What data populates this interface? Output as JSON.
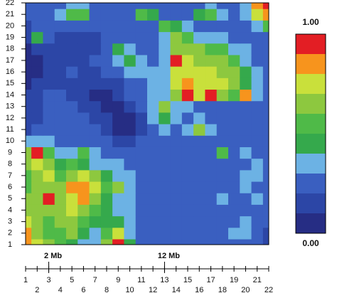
{
  "chart_data": {
    "type": "contour",
    "x": [
      1,
      2,
      3,
      4,
      5,
      6,
      7,
      8,
      9,
      10,
      11,
      12,
      13,
      14,
      15,
      16,
      17,
      18,
      19,
      20,
      21,
      22
    ],
    "y": [
      1,
      2,
      3,
      4,
      5,
      6,
      7,
      8,
      9,
      10,
      11,
      12,
      13,
      14,
      15,
      16,
      17,
      18,
      19,
      20,
      21,
      22
    ],
    "z": [
      [
        0.85,
        0.7,
        0.6,
        0.55,
        0.5,
        0.45,
        0.4,
        0.6,
        0.9,
        0.5,
        0.3,
        0.25,
        0.25,
        0.25,
        0.25,
        0.25,
        0.3,
        0.25,
        0.25,
        0.3,
        0.25,
        0.2
      ],
      [
        0.8,
        0.65,
        0.55,
        0.55,
        0.6,
        0.5,
        0.45,
        0.55,
        0.7,
        0.45,
        0.3,
        0.25,
        0.25,
        0.25,
        0.25,
        0.3,
        0.25,
        0.3,
        0.35,
        0.45,
        0.3,
        0.2
      ],
      [
        0.7,
        0.6,
        0.55,
        0.6,
        0.65,
        0.55,
        0.5,
        0.5,
        0.5,
        0.4,
        0.3,
        0.25,
        0.3,
        0.3,
        0.25,
        0.25,
        0.3,
        0.25,
        0.3,
        0.35,
        0.3,
        0.25
      ],
      [
        0.65,
        0.6,
        0.6,
        0.65,
        0.7,
        0.65,
        0.55,
        0.5,
        0.45,
        0.35,
        0.3,
        0.3,
        0.25,
        0.25,
        0.3,
        0.25,
        0.25,
        0.3,
        0.3,
        0.3,
        0.3,
        0.25
      ],
      [
        0.6,
        0.65,
        0.9,
        0.65,
        0.75,
        0.85,
        0.65,
        0.5,
        0.45,
        0.35,
        0.3,
        0.25,
        0.25,
        0.3,
        0.3,
        0.25,
        0.3,
        0.35,
        0.3,
        0.3,
        0.35,
        0.3
      ],
      [
        0.55,
        0.6,
        0.65,
        0.6,
        0.85,
        0.8,
        0.7,
        0.55,
        0.6,
        0.4,
        0.3,
        0.25,
        0.3,
        0.3,
        0.25,
        0.3,
        0.3,
        0.3,
        0.3,
        0.35,
        0.3,
        0.25
      ],
      [
        0.55,
        0.65,
        0.7,
        0.55,
        0.65,
        0.7,
        0.6,
        0.5,
        0.45,
        0.35,
        0.3,
        0.25,
        0.25,
        0.3,
        0.3,
        0.25,
        0.25,
        0.3,
        0.3,
        0.35,
        0.45,
        0.3
      ],
      [
        0.6,
        0.75,
        0.6,
        0.5,
        0.55,
        0.5,
        0.45,
        0.4,
        0.35,
        0.3,
        0.3,
        0.25,
        0.25,
        0.3,
        0.25,
        0.25,
        0.3,
        0.3,
        0.3,
        0.3,
        0.35,
        0.3
      ],
      [
        0.6,
        0.9,
        0.55,
        0.4,
        0.35,
        0.55,
        0.35,
        0.3,
        0.3,
        0.3,
        0.3,
        0.3,
        0.25,
        0.3,
        0.3,
        0.3,
        0.3,
        0.55,
        0.3,
        0.45,
        0.3,
        0.25
      ],
      [
        0.35,
        0.4,
        0.35,
        0.3,
        0.3,
        0.3,
        0.3,
        0.25,
        0.2,
        0.2,
        0.25,
        0.3,
        0.3,
        0.3,
        0.3,
        0.3,
        0.3,
        0.3,
        0.3,
        0.3,
        0.3,
        0.3
      ],
      [
        0.2,
        0.25,
        0.3,
        0.3,
        0.3,
        0.3,
        0.25,
        0.2,
        0.15,
        0.15,
        0.2,
        0.3,
        0.35,
        0.3,
        0.45,
        0.6,
        0.45,
        0.3,
        0.3,
        0.3,
        0.25,
        0.3
      ],
      [
        0.2,
        0.2,
        0.25,
        0.3,
        0.3,
        0.25,
        0.2,
        0.2,
        0.15,
        0.15,
        0.2,
        0.35,
        0.5,
        0.35,
        0.3,
        0.4,
        0.3,
        0.3,
        0.3,
        0.25,
        0.25,
        0.3
      ],
      [
        0.2,
        0.2,
        0.25,
        0.25,
        0.25,
        0.2,
        0.2,
        0.15,
        0.15,
        0.2,
        0.3,
        0.45,
        0.6,
        0.45,
        0.35,
        0.3,
        0.3,
        0.3,
        0.3,
        0.3,
        0.3,
        0.3
      ],
      [
        0.2,
        0.2,
        0.25,
        0.25,
        0.2,
        0.2,
        0.15,
        0.15,
        0.2,
        0.25,
        0.3,
        0.4,
        0.45,
        0.6,
        0.9,
        0.7,
        0.9,
        0.65,
        0.55,
        0.8,
        0.4,
        0.3
      ],
      [
        0.15,
        0.2,
        0.2,
        0.2,
        0.2,
        0.2,
        0.2,
        0.2,
        0.2,
        0.25,
        0.3,
        0.35,
        0.4,
        0.75,
        0.8,
        0.75,
        0.75,
        0.7,
        0.6,
        0.5,
        0.35,
        0.3
      ],
      [
        0.15,
        0.15,
        0.2,
        0.2,
        0.25,
        0.2,
        0.2,
        0.25,
        0.3,
        0.4,
        0.45,
        0.35,
        0.35,
        0.7,
        0.75,
        0.75,
        0.7,
        0.65,
        0.6,
        0.5,
        0.35,
        0.3
      ],
      [
        0.15,
        0.15,
        0.2,
        0.2,
        0.2,
        0.2,
        0.25,
        0.3,
        0.35,
        0.5,
        0.4,
        0.3,
        0.35,
        0.9,
        0.7,
        0.65,
        0.6,
        0.6,
        0.55,
        0.45,
        0.3,
        0.25
      ],
      [
        0.15,
        0.2,
        0.2,
        0.2,
        0.2,
        0.2,
        0.2,
        0.3,
        0.5,
        0.35,
        0.3,
        0.25,
        0.4,
        0.65,
        0.6,
        0.6,
        0.55,
        0.55,
        0.45,
        0.35,
        0.3,
        0.25
      ],
      [
        0.2,
        0.5,
        0.25,
        0.2,
        0.2,
        0.2,
        0.2,
        0.25,
        0.3,
        0.3,
        0.25,
        0.25,
        0.45,
        0.6,
        0.55,
        0.45,
        0.4,
        0.35,
        0.3,
        0.3,
        0.25,
        0.3
      ],
      [
        0.2,
        0.25,
        0.25,
        0.25,
        0.3,
        0.25,
        0.25,
        0.25,
        0.3,
        0.25,
        0.25,
        0.25,
        0.55,
        0.5,
        0.35,
        0.3,
        0.3,
        0.3,
        0.3,
        0.3,
        0.45,
        0.55
      ],
      [
        0.25,
        0.3,
        0.3,
        0.35,
        0.55,
        0.55,
        0.3,
        0.3,
        0.25,
        0.3,
        0.55,
        0.5,
        0.3,
        0.3,
        0.3,
        0.5,
        0.55,
        0.4,
        0.3,
        0.35,
        0.7,
        0.85
      ],
      [
        0.25,
        0.3,
        0.3,
        0.3,
        0.35,
        0.35,
        0.3,
        0.3,
        0.25,
        0.3,
        0.3,
        0.3,
        0.3,
        0.3,
        0.3,
        0.3,
        0.35,
        0.3,
        0.3,
        0.4,
        0.85,
        0.95
      ]
    ],
    "levels": [
      0,
      0.18,
      0.23,
      0.33,
      0.48,
      0.53,
      0.6,
      0.7,
      0.8,
      0.9,
      1
    ],
    "colors": [
      "#262d84",
      "#2c46a6",
      "#3a5fc0",
      "#6cb2e4",
      "#35a94c",
      "#4fba48",
      "#8dc83f",
      "#c9e03b",
      "#f7941d",
      "#e31e24"
    ],
    "xlim": [
      1,
      22
    ],
    "ylim": [
      1,
      22
    ],
    "xticks": [
      1,
      2,
      3,
      4,
      5,
      6,
      7,
      8,
      9,
      10,
      11,
      12,
      13,
      14,
      15,
      16,
      17,
      18,
      19,
      20,
      21,
      22
    ],
    "yticks": [
      1,
      2,
      3,
      4,
      5,
      6,
      7,
      8,
      9,
      10,
      11,
      12,
      13,
      14,
      15,
      16,
      17,
      18,
      19,
      20,
      21,
      22
    ],
    "colorbar_ticks": [
      {
        "value": 0,
        "label": "0.00"
      },
      {
        "value": 1,
        "label": "1.00"
      }
    ],
    "markers": [
      {
        "label": "2 Mb",
        "x": 3
      },
      {
        "label": "12 Mb",
        "x": 13
      }
    ]
  }
}
